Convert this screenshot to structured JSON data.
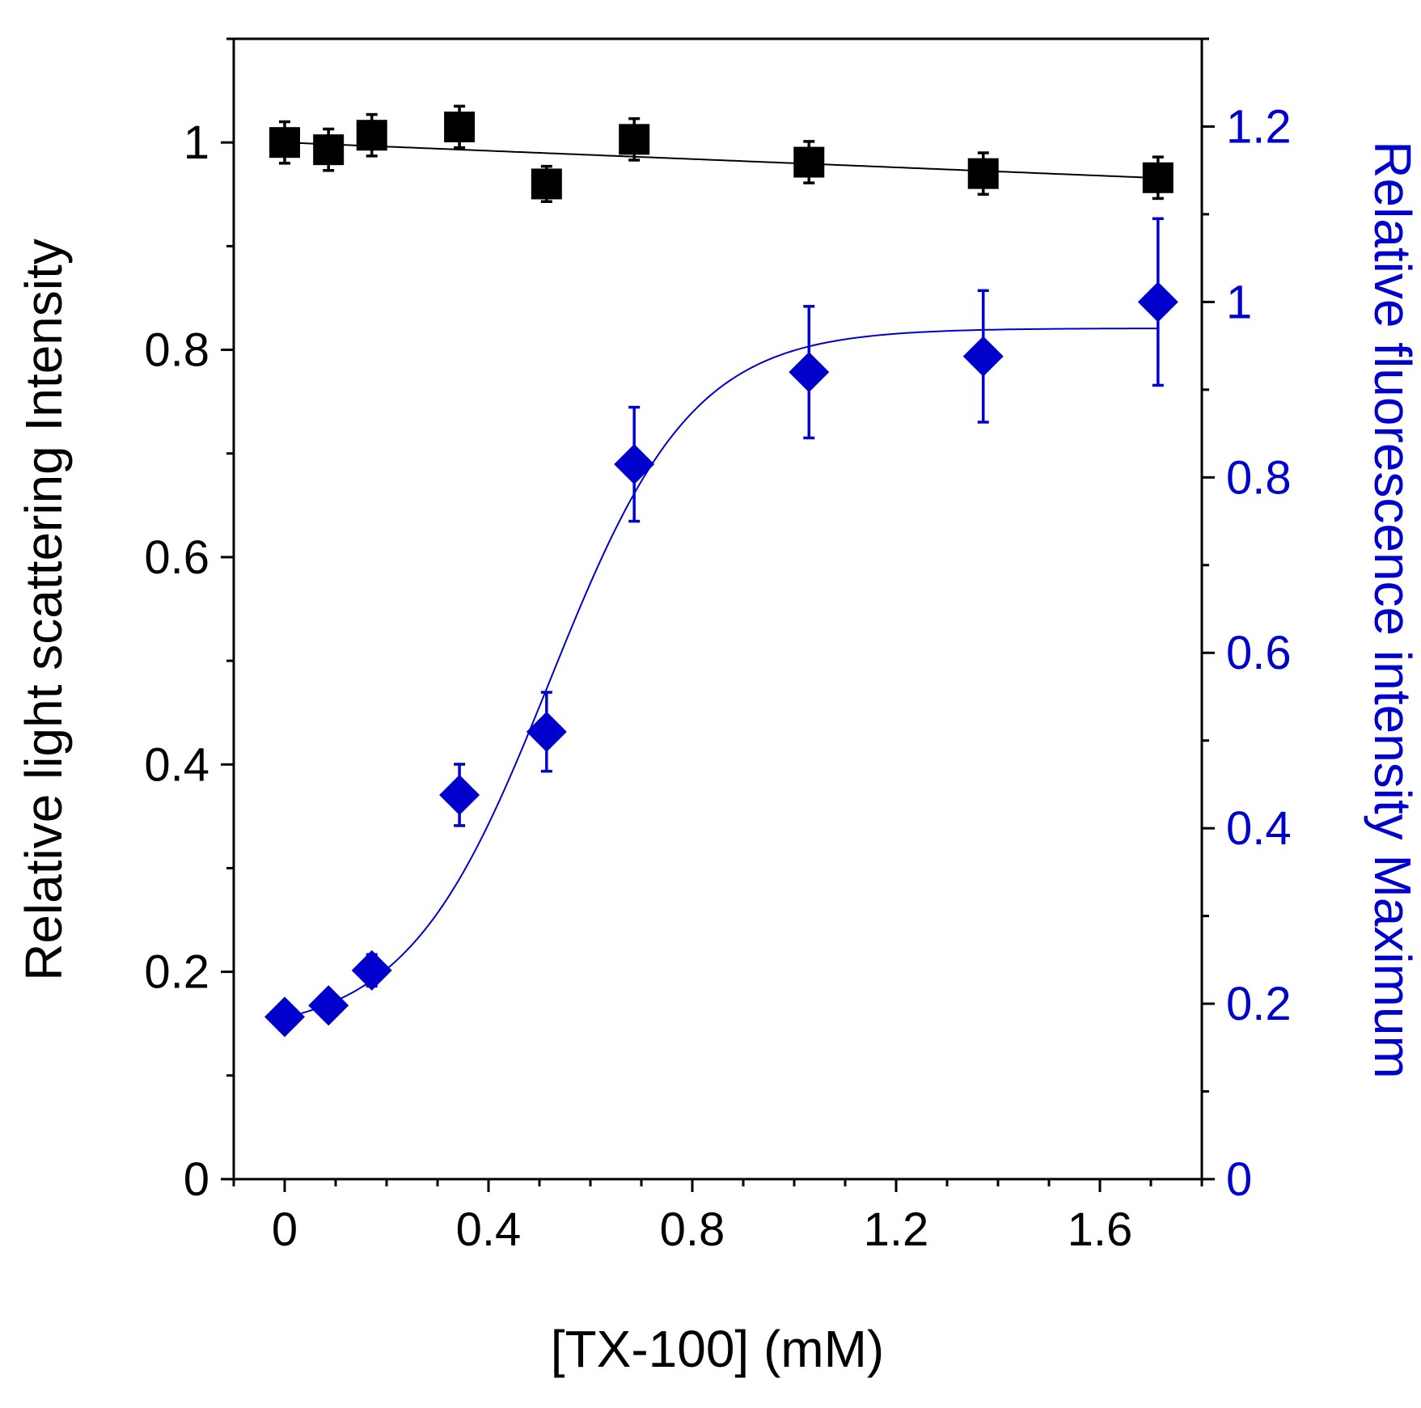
{
  "colors": {
    "black": "#000000",
    "blue": "#0000cc"
  },
  "chart_data": {
    "type": "scatter",
    "xlabel": "[TX-100] (mM)",
    "ylabel_left": "Relative light scattering Intensity",
    "ylabel_right": "Relative fluorescence intensity Maximum",
    "xlim": [
      -0.1,
      1.8
    ],
    "ylim_left": [
      0,
      1.1
    ],
    "ylim_right": [
      0,
      1.3
    ],
    "x_ticks": [
      "0",
      "0.4",
      "0.8",
      "1.2",
      "1.6"
    ],
    "y_left_ticks": [
      "0",
      "0.2",
      "0.4",
      "0.6",
      "0.8",
      "1"
    ],
    "y_right_ticks": [
      "0",
      "0.2",
      "0.4",
      "0.6",
      "0.8",
      "1",
      "1.2"
    ],
    "series": [
      {
        "name": "Light scattering",
        "axis": "left",
        "marker": "square",
        "color": "#000000",
        "x": [
          0,
          0.086,
          0.171,
          0.343,
          0.514,
          0.686,
          1.029,
          1.371,
          1.714
        ],
        "y": [
          1.0,
          0.993,
          1.007,
          1.015,
          0.96,
          1.003,
          0.981,
          0.97,
          0.966
        ],
        "err": [
          0.02,
          0.02,
          0.02,
          0.02,
          0.017,
          0.02,
          0.02,
          0.02,
          0.02
        ],
        "fit": {
          "type": "linear",
          "intercept": 1.0,
          "slope": -0.02
        }
      },
      {
        "name": "Fluorescence intensity maximum",
        "axis": "right",
        "marker": "diamond",
        "color": "#0000cc",
        "x": [
          0,
          0.086,
          0.171,
          0.343,
          0.514,
          0.686,
          1.029,
          1.371,
          1.714
        ],
        "y": [
          0.185,
          0.198,
          0.238,
          0.438,
          0.51,
          0.815,
          0.92,
          0.938,
          1.0
        ],
        "err": [
          0,
          0,
          0.018,
          0.035,
          0.045,
          0.065,
          0.075,
          0.075,
          0.095
        ],
        "fit": {
          "type": "sigmoid",
          "bottom": 0.165,
          "top": 0.97,
          "x0": 0.52,
          "dx": 0.14
        }
      }
    ]
  }
}
